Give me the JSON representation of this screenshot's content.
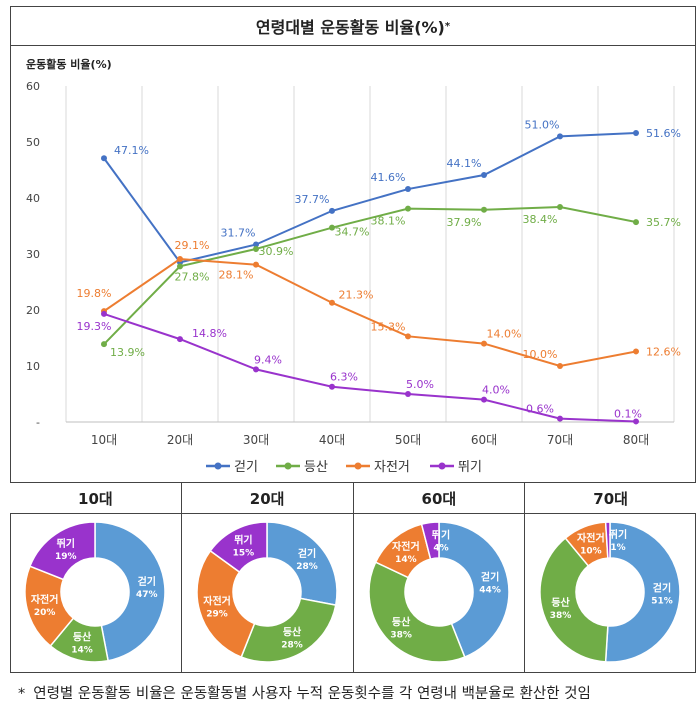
{
  "title": "연령대별 운동활동 비율(%)",
  "title_mark": "*",
  "footnote": {
    "marker": "*",
    "text": "연령별 운동활동 비율은 운동활동별 사용자 누적 운동횟수를 각 연령내 백분율로 환산한 것임"
  },
  "chart_data": [
    {
      "type": "line",
      "ylabel": "운동활동 비율(%)",
      "ylim": [
        0,
        60
      ],
      "yticks": [
        "-",
        "10",
        "20",
        "30",
        "40",
        "50",
        "60"
      ],
      "categories": [
        "10대",
        "20대",
        "30대",
        "40대",
        "50대",
        "60대",
        "70대",
        "80대"
      ],
      "grid": "vertical",
      "legend": "bottom",
      "series": [
        {
          "name": "걷기",
          "color": "#4472C4",
          "values": [
            47.1,
            28.5,
            31.7,
            37.7,
            41.6,
            44.1,
            51.0,
            51.6
          ],
          "labels": [
            "47.1%",
            "",
            "31.7%",
            "37.7%",
            "41.6%",
            "44.1%",
            "51.0%",
            "51.6%"
          ]
        },
        {
          "name": "등산",
          "color": "#70AD47",
          "values": [
            13.9,
            27.8,
            30.9,
            34.7,
            38.1,
            37.9,
            38.4,
            35.7
          ],
          "labels": [
            "13.9%",
            "27.8%",
            "30.9%",
            "34.7%",
            "38.1%",
            "37.9%",
            "38.4%",
            "35.7%"
          ]
        },
        {
          "name": "자전거",
          "color": "#ED7D31",
          "values": [
            19.8,
            29.1,
            28.1,
            21.3,
            15.3,
            14.0,
            10.0,
            12.6
          ],
          "labels": [
            "19.8%",
            "29.1%",
            "28.1%",
            "21.3%",
            "15.3%",
            "14.0%",
            "10.0%",
            "12.6%"
          ]
        },
        {
          "name": "뛰기",
          "color": "#9933CC",
          "values": [
            19.3,
            14.8,
            9.4,
            6.3,
            5.0,
            4.0,
            0.6,
            0.1
          ],
          "labels": [
            "19.3%",
            "14.8%",
            "9.4%",
            "6.3%",
            "5.0%",
            "4.0%",
            "0.6%",
            "0.1%"
          ]
        }
      ]
    },
    {
      "type": "pie",
      "title": "10대",
      "slices": [
        {
          "name": "걷기",
          "value": 47,
          "label": "47%",
          "color": "#5B9BD5"
        },
        {
          "name": "등산",
          "value": 14,
          "label": "14%",
          "color": "#70AD47"
        },
        {
          "name": "자전거",
          "value": 20,
          "label": "20%",
          "color": "#ED7D31"
        },
        {
          "name": "뛰기",
          "value": 19,
          "label": "19%",
          "color": "#9933CC"
        }
      ]
    },
    {
      "type": "pie",
      "title": "20대",
      "slices": [
        {
          "name": "걷기",
          "value": 28,
          "label": "28%",
          "color": "#5B9BD5"
        },
        {
          "name": "등산",
          "value": 28,
          "label": "28%",
          "color": "#70AD47"
        },
        {
          "name": "자전거",
          "value": 29,
          "label": "29%",
          "color": "#ED7D31"
        },
        {
          "name": "뛰기",
          "value": 15,
          "label": "15%",
          "color": "#9933CC"
        }
      ]
    },
    {
      "type": "pie",
      "title": "60대",
      "slices": [
        {
          "name": "걷기",
          "value": 44,
          "label": "44%",
          "color": "#5B9BD5"
        },
        {
          "name": "등산",
          "value": 38,
          "label": "38%",
          "color": "#70AD47"
        },
        {
          "name": "자전거",
          "value": 14,
          "label": "14%",
          "color": "#ED7D31"
        },
        {
          "name": "뛰기",
          "value": 4,
          "label": "4%",
          "color": "#9933CC"
        }
      ]
    },
    {
      "type": "pie",
      "title": "70대",
      "slices": [
        {
          "name": "걷기",
          "value": 51,
          "label": "51%",
          "color": "#5B9BD5"
        },
        {
          "name": "등산",
          "value": 38,
          "label": "38%",
          "color": "#70AD47"
        },
        {
          "name": "자전거",
          "value": 10,
          "label": "10%",
          "color": "#ED7D31"
        },
        {
          "name": "뛰기",
          "value": 1,
          "label": "1%",
          "color": "#9933CC"
        }
      ]
    }
  ]
}
